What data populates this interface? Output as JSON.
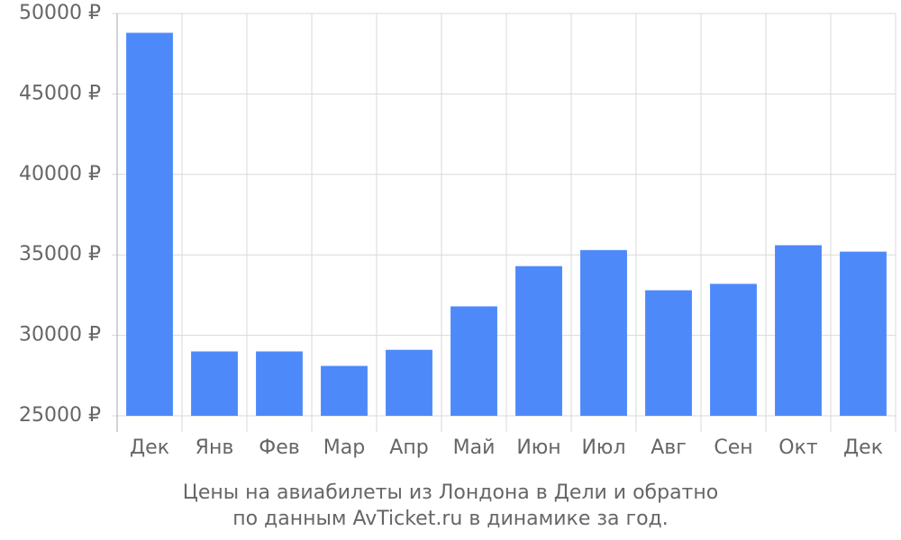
{
  "chart_data": {
    "type": "bar",
    "title": [
      "Цены на авиабилеты из Лондона в Дели и обратно",
      "по данным AvTicket.ru в динамике за год."
    ],
    "categories": [
      "Дек",
      "Янв",
      "Фев",
      "Мар",
      "Апр",
      "Май",
      "Июн",
      "Июл",
      "Авг",
      "Сен",
      "Окт",
      "Дек"
    ],
    "values": [
      48800,
      29000,
      29000,
      28100,
      29100,
      31800,
      34300,
      35300,
      32800,
      33200,
      35600,
      35200
    ],
    "color": "#4d89f9",
    "ylim": [
      25000,
      50000
    ],
    "yticks": [
      {
        "value": 25000,
        "label": "25000 ₽"
      },
      {
        "value": 30000,
        "label": "30000 ₽"
      },
      {
        "value": 35000,
        "label": "35000 ₽"
      },
      {
        "value": 40000,
        "label": "40000 ₽"
      },
      {
        "value": 45000,
        "label": "45000 ₽"
      },
      {
        "value": 50000,
        "label": "50000 ₽"
      }
    ],
    "grid": true
  }
}
